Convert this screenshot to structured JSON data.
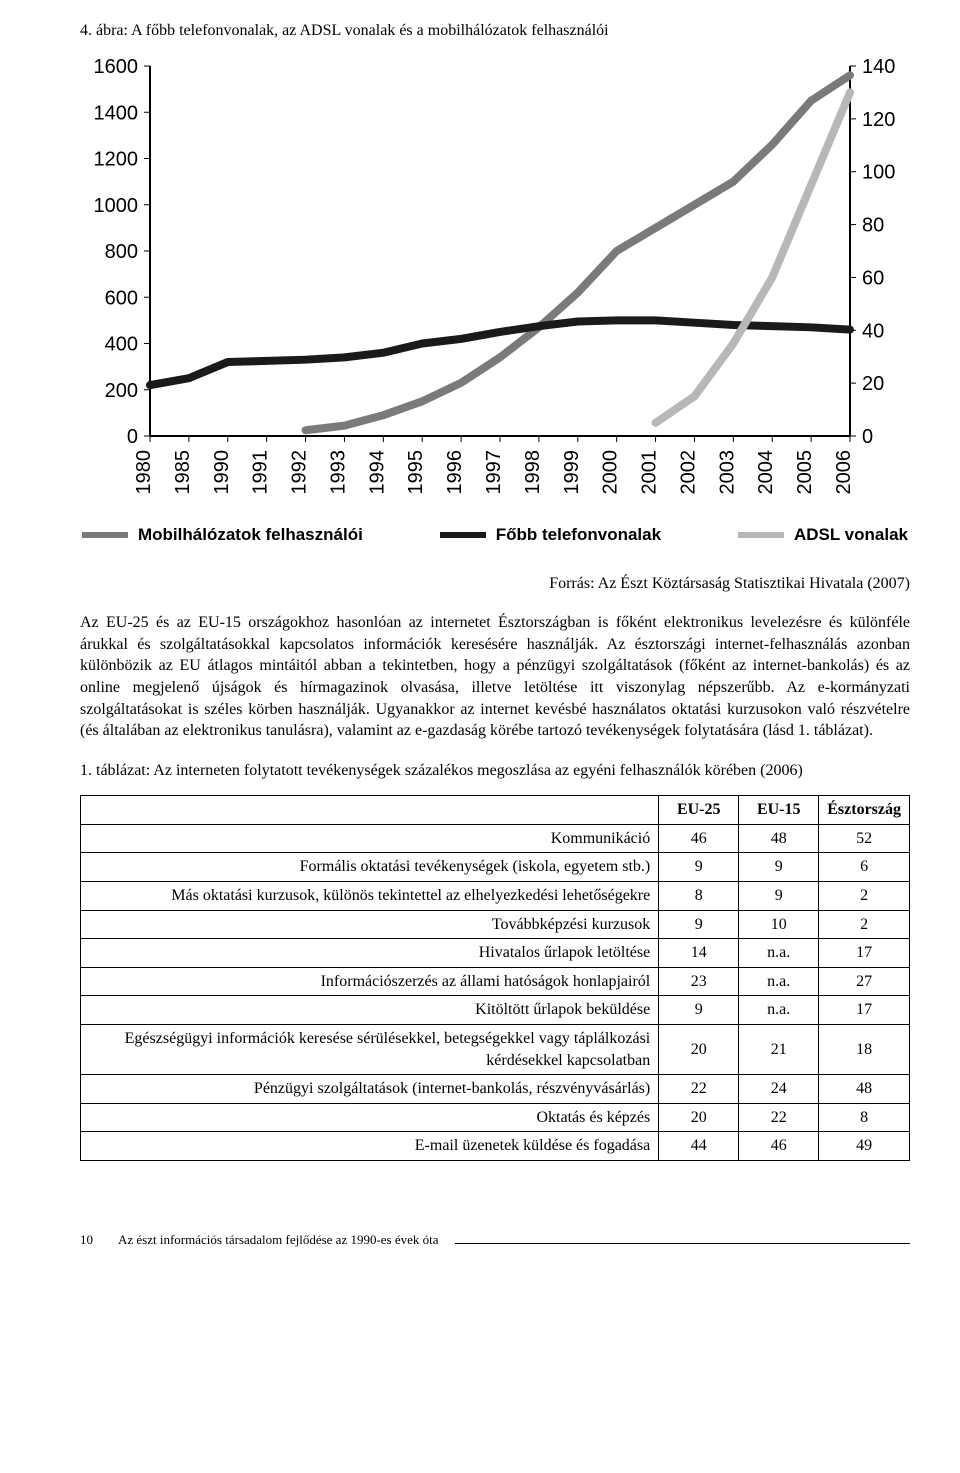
{
  "figure": {
    "title": "4. ábra: A főbb telefonvonalak, az ADSL vonalak és a mobilhálózatok felhasználói",
    "type": "line",
    "background_color": "#ffffff",
    "axis_color": "#000000",
    "grid_color": "#e0e0e0",
    "axis_font_family": "Arial",
    "axis_font_size": 20,
    "axis_font_weight": 400,
    "tick_line_width": 1,
    "line_width": 8,
    "categories": [
      "1980",
      "1985",
      "1990",
      "1991",
      "1992",
      "1993",
      "1994",
      "1995",
      "1996",
      "1997",
      "1998",
      "1999",
      "2000",
      "2001",
      "2002",
      "2003",
      "2004",
      "2005",
      "2006"
    ],
    "left_axis": {
      "ylim": [
        0,
        1600
      ],
      "tick_step": 200,
      "ticks": [
        0,
        200,
        400,
        600,
        800,
        1000,
        1200,
        1400,
        1600
      ]
    },
    "right_axis": {
      "ylim": [
        0,
        140
      ],
      "tick_step": 20,
      "ticks": [
        0,
        20,
        40,
        60,
        80,
        100,
        120,
        140
      ]
    },
    "series": [
      {
        "key": "mobil",
        "name": "Mobilhálózatok felhasználói",
        "axis": "left",
        "color": "#7a7a7a",
        "values": [
          null,
          null,
          null,
          null,
          25,
          45,
          90,
          150,
          230,
          340,
          470,
          620,
          800,
          900,
          1000,
          1100,
          1260,
          1450,
          1560
        ]
      },
      {
        "key": "fobb",
        "name": "Főbb telefonvonalak",
        "axis": "left",
        "color": "#1a1a1a",
        "values": [
          220,
          250,
          320,
          325,
          330,
          340,
          360,
          400,
          420,
          450,
          475,
          495,
          500,
          500,
          490,
          480,
          475,
          470,
          460
        ]
      },
      {
        "key": "adsl",
        "name": "ADSL vonalak",
        "axis": "right",
        "color": "#b7b7b7",
        "values": [
          null,
          null,
          null,
          null,
          null,
          null,
          null,
          null,
          null,
          null,
          null,
          null,
          null,
          5,
          15,
          35,
          60,
          95,
          130
        ]
      }
    ],
    "legend": [
      {
        "label": "Mobilhálózatok felhasználói",
        "color": "#7a7a7a"
      },
      {
        "label": "Főbb telefonvonalak",
        "color": "#1a1a1a"
      },
      {
        "label": "ADSL vonalak",
        "color": "#b7b7b7"
      }
    ],
    "legend_fontsize": 17,
    "legend_font_family": "Arial",
    "legend_font_weight": 700
  },
  "source_line": "Forrás: Az Észt Köztársaság Statisztikai Hivatala (2007)",
  "body_paragraph": "Az EU-25 és az EU-15 országokhoz hasonlóan az internetet Észtországban is főként elektronikus levelezésre és különféle árukkal és szolgáltatásokkal kapcsolatos információk keresésére használják. Az észtországi internet-felhasználás azonban különbözik az EU átlagos mintáitól abban a tekintetben, hogy a pénzügyi szolgáltatások (főként az internet-bankolás) és az online megjelenő újságok és hírmagazinok olvasása, illetve letöltése itt viszonylag népszerűbb. Az e-kormányzati szolgáltatásokat is széles körben használják. Ugyanakkor az internet kevésbé használatos oktatási kurzusokon való részvételre (és általában az elektronikus tanulásra), valamint az e-gazdaság körébe tartozó tevékenységek folytatására (lásd 1. táblázat).",
  "table": {
    "title": "1. táblázat: Az interneten folytatott tevékenységek százalékos megoszlása az egyéni felhasználók körében (2006)",
    "columns": [
      "",
      "EU-25",
      "EU-15",
      "Észtország"
    ],
    "col_widths": [
      "auto",
      "80",
      "80",
      "100"
    ],
    "label_align": "right",
    "num_align": "center",
    "rows": [
      [
        "Kommunikáció",
        "46",
        "48",
        "52"
      ],
      [
        "Formális oktatási tevékenységek (iskola, egyetem stb.)",
        "9",
        "9",
        "6"
      ],
      [
        "Más oktatási kurzusok, különös tekintettel az elhelyezkedési lehetőségekre",
        "8",
        "9",
        "2"
      ],
      [
        "Továbbképzési kurzusok",
        "9",
        "10",
        "2"
      ],
      [
        "Hivatalos űrlapok letöltése",
        "14",
        "n.a.",
        "17"
      ],
      [
        "Információszerzés az állami hatóságok honlapjairól",
        "23",
        "n.a.",
        "27"
      ],
      [
        "Kitöltött űrlapok beküldése",
        "9",
        "n.a.",
        "17"
      ],
      [
        "Egészségügyi információk keresése sérülésekkel, betegségekkel vagy táplálkozási kérdésekkel kapcsolatban",
        "20",
        "21",
        "18"
      ],
      [
        "Pénzügyi szolgáltatások (internet-bankolás, részvényvásárlás)",
        "22",
        "24",
        "48"
      ],
      [
        "Oktatás és képzés",
        "20",
        "22",
        "8"
      ],
      [
        "E-mail üzenetek küldése és fogadása",
        "44",
        "46",
        "49"
      ]
    ]
  },
  "footer": {
    "page_number": "10",
    "running_title": "Az észt információs társadalom fejlődése az 1990-es évek óta"
  }
}
